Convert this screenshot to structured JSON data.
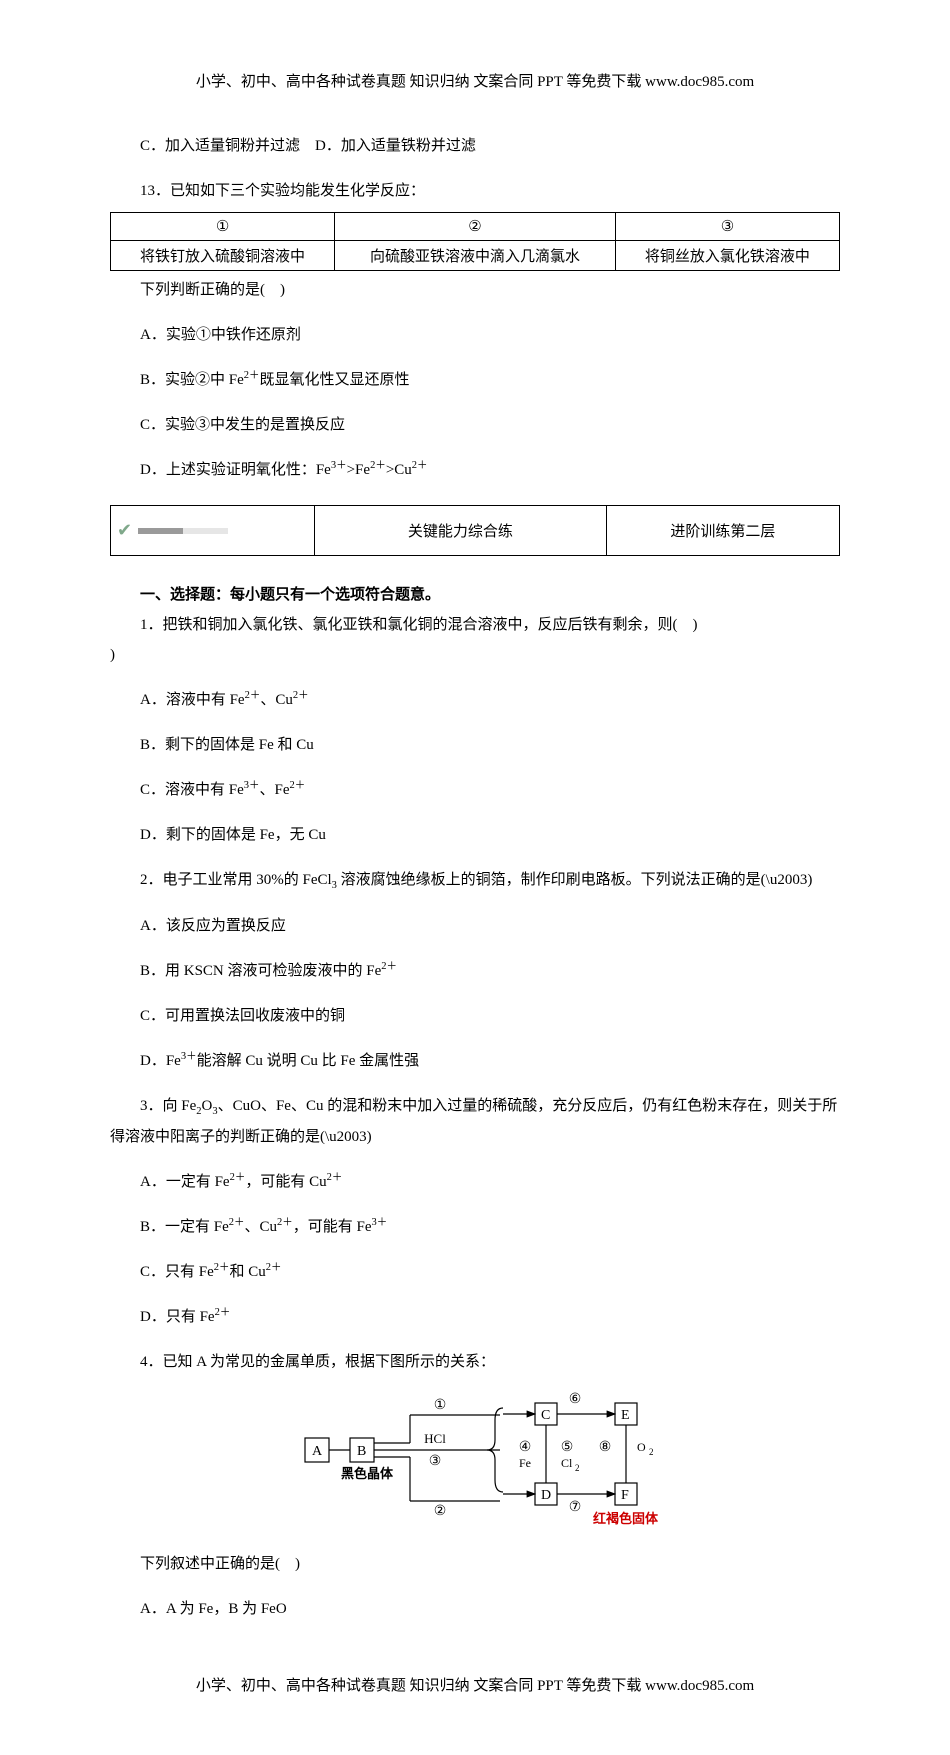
{
  "header": "小学、初中、高中各种试卷真题 知识归纳 文案合同 PPT 等免费下载    www.doc985.com",
  "footer": "小学、初中、高中各种试卷真题 知识归纳 文案合同 PPT 等免费下载    www.doc985.com",
  "prelines": {
    "optC": "C．加入适量铜粉并过滤 D．加入适量铁粉并过滤",
    "q13": "13．已知如下三个实验均能发生化学反应："
  },
  "table1": {
    "headers": [
      "①",
      "②",
      "③"
    ],
    "cells": [
      "将铁钉放入硫酸铜溶液中",
      "向硫酸亚铁溶液中滴入几滴氯水",
      "将铜丝放入氯化铁溶液中"
    ]
  },
  "after_t1": {
    "stem": "下列判断正确的是( )",
    "A": "A．实验①中铁作还原剂",
    "D_tail": "D．上述实验证明氧化性：Fe"
  },
  "box": {
    "center": "关键能力综合练",
    "right": "进阶训练第二层"
  },
  "sec1": {
    "title": "一、选择题：每小题只有一个选项符合题意。",
    "q1_stem": "1．把铁和铜加入氯化铁、氯化亚铁和氯化铜的混合溶液中，反应后铁有剩余，则( )"
  },
  "q1": {
    "B": "B．剩下的固体是 Fe 和 Cu",
    "D": "D．剩下的固体是 Fe，无 Cu"
  },
  "q2": {
    "A": "A．该反应为置换反应",
    "C": "C．可用置换法回收废液中的铜"
  },
  "q4": {
    "lead": "4．已知 A 为常见的金属单质，根据下图所示的关系：",
    "stem": "下列叙述中正确的是( )",
    "A": "A．A 为 Fe，B 为 FeO"
  },
  "diagram": {
    "bg": "#ffffff",
    "line_color": "#000000",
    "red": "#cc0000",
    "labels": {
      "A": "A",
      "B": "B",
      "C": "C",
      "D": "D",
      "E": "E",
      "F": "F",
      "n1": "①",
      "n2": "②",
      "n3": "③",
      "n4": "④",
      "n5": "⑤",
      "n6": "⑥",
      "n7": "⑦",
      "n8": "⑧",
      "hcl": "HCl",
      "fe": "Fe",
      "cl2": "Cl",
      "o2": "O",
      "black": "黑色晶体",
      "red": "红褐色固体"
    }
  }
}
